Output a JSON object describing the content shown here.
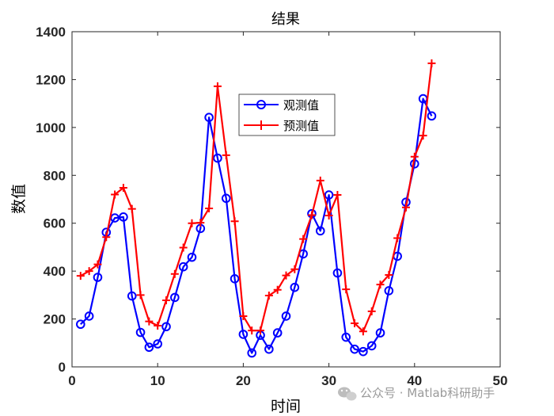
{
  "chart_data": {
    "type": "line",
    "title": "结果",
    "xlabel": "时间",
    "ylabel": "数值",
    "xlim": [
      0,
      50
    ],
    "ylim": [
      0,
      1400
    ],
    "xticks": [
      "0",
      "10",
      "20",
      "30",
      "40",
      "50"
    ],
    "yticks": [
      "0",
      "200",
      "400",
      "600",
      "800",
      "1000",
      "1200",
      "1400"
    ],
    "grid": false,
    "legend_position": "top-center",
    "series": [
      {
        "name": "观测值",
        "color": "#0000ff",
        "marker": "circle",
        "x": [
          1,
          2,
          3,
          4,
          5,
          6,
          7,
          8,
          9,
          10,
          11,
          12,
          13,
          14,
          15,
          16,
          17,
          18,
          19,
          20,
          21,
          22,
          23,
          24,
          25,
          26,
          27,
          28,
          29,
          30,
          31,
          32,
          33,
          34,
          35,
          36,
          37,
          38,
          39,
          40,
          41,
          42
        ],
        "values": [
          178,
          212,
          374,
          562,
          622,
          626,
          296,
          144,
          82,
          96,
          168,
          290,
          418,
          458,
          578,
          1042,
          872,
          704,
          368,
          136,
          58,
          132,
          74,
          142,
          212,
          332,
          472,
          640,
          568,
          718,
          392,
          124,
          74,
          64,
          88,
          142,
          318,
          462,
          688,
          848,
          1120,
          1048
        ]
      },
      {
        "name": "预测值",
        "color": "#ff0000",
        "marker": "plus",
        "x": [
          1,
          2,
          3,
          4,
          5,
          6,
          7,
          8,
          9,
          10,
          11,
          12,
          13,
          14,
          15,
          16,
          17,
          18,
          19,
          20,
          21,
          22,
          23,
          24,
          25,
          26,
          27,
          28,
          29,
          30,
          31,
          32,
          33,
          34,
          35,
          36,
          37,
          38,
          39,
          40,
          41,
          42
        ],
        "values": [
          380,
          400,
          428,
          542,
          720,
          748,
          660,
          300,
          190,
          172,
          278,
          388,
          498,
          600,
          602,
          662,
          1172,
          884,
          608,
          212,
          152,
          152,
          298,
          322,
          382,
          408,
          534,
          634,
          778,
          632,
          718,
          324,
          182,
          148,
          232,
          344,
          384,
          538,
          666,
          878,
          966,
          1268
        ]
      }
    ]
  },
  "watermark": {
    "icon": "wechat-icon",
    "text": "公众号 · Matlab科研助手"
  }
}
